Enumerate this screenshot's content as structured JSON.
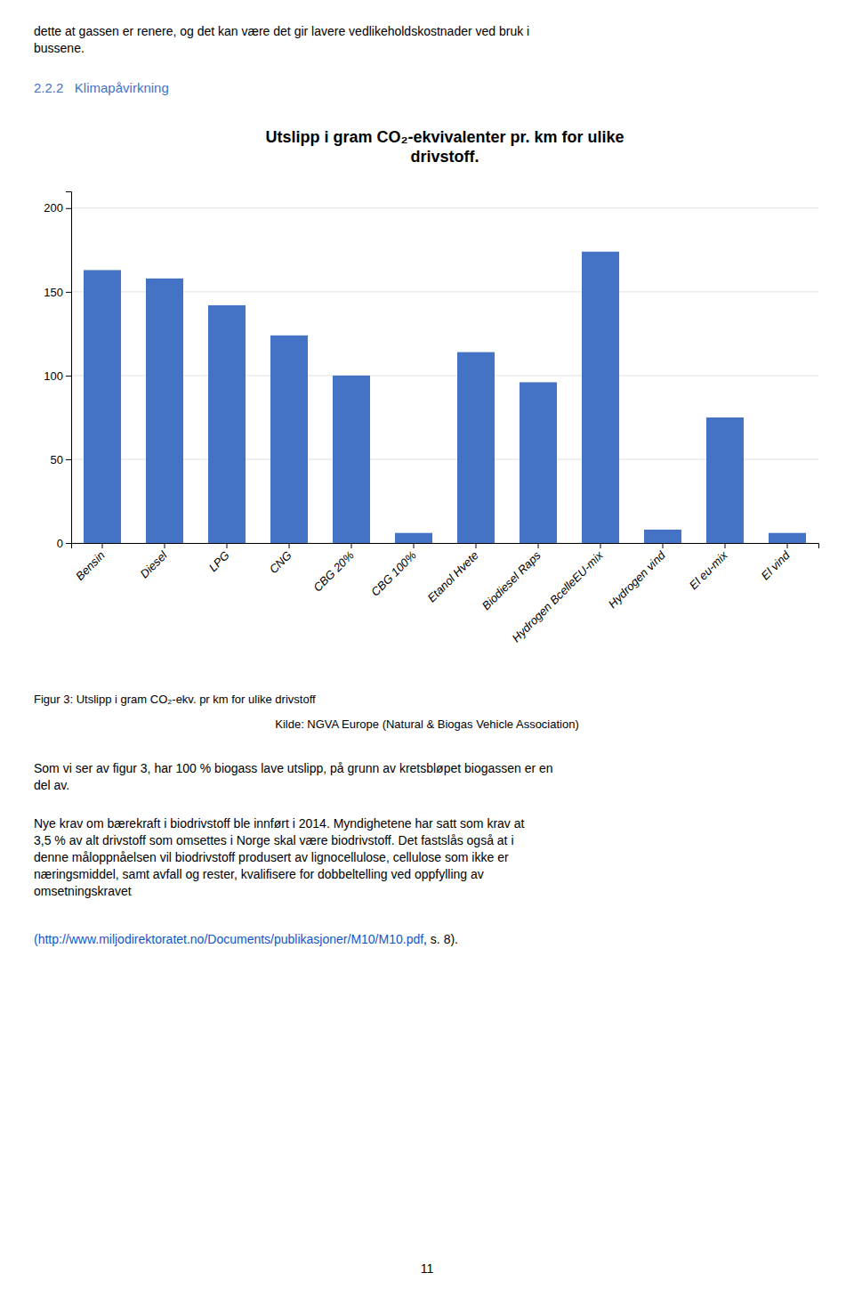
{
  "chart_data": {
    "type": "bar",
    "title": "Utslipp i gram CO₂-ekvivalenter pr. km for ulike\ndrivstoff.",
    "categories": [
      "Bensin",
      "Diesel",
      "LPG",
      "CNG",
      "CBG 20%",
      "CBG 100%",
      "Etanol Hvete",
      "Biodiesel Raps",
      "Hydrogen BcelleEU-mix",
      "Hydrogen vind",
      "El eu-mix",
      "El vind"
    ],
    "values": [
      163,
      158,
      142,
      124,
      100,
      6,
      114,
      96,
      174,
      8,
      75,
      6
    ],
    "color": "#4472C4",
    "ylim": [
      0,
      210
    ],
    "yticks": [
      0,
      50,
      100,
      150,
      200
    ],
    "grid": true
  },
  "header_text": "dette at gassen er renere, og det kan være det gir lavere vedlikeholdskostnader ved bruk i\nbussene.",
  "section_heading": "2.2.2   Klimapåvirkning",
  "caption_text": "Figur 3: Utslipp i gram CO₂-ekv. pr km for ulike drivstoff",
  "source_text": "Kilde: NGVA Europe (Natural & Biogas Vehicle Association)",
  "body_text1": "Som vi ser av figur 3, har 100 % biogass lave utslipp, på grunn av kretsbløpet biogassen er en\ndel av.",
  "body_text2": "Nye krav om bærekraft i biodrivstoff ble innført i 2014. Myndighetene har satt som krav at\n3,5 % av alt drivstoff som omsettes i Norge skal være biodrivstoff. Det fastslås også at i\ndenne måloppnåelsen vil biodrivstoff produsert av lignocellulose, cellulose som ikke er\nnæringsmiddel, samt avfall og rester, kvalifisere for dobbeltelling ved oppfylling av\nomsetningskravet",
  "link_text": "(http://www.miljodirektoratet.no/Documents/publikasjoner/M10/M10.pdf",
  "end_text": ", s. 8).",
  "page_number": "11"
}
